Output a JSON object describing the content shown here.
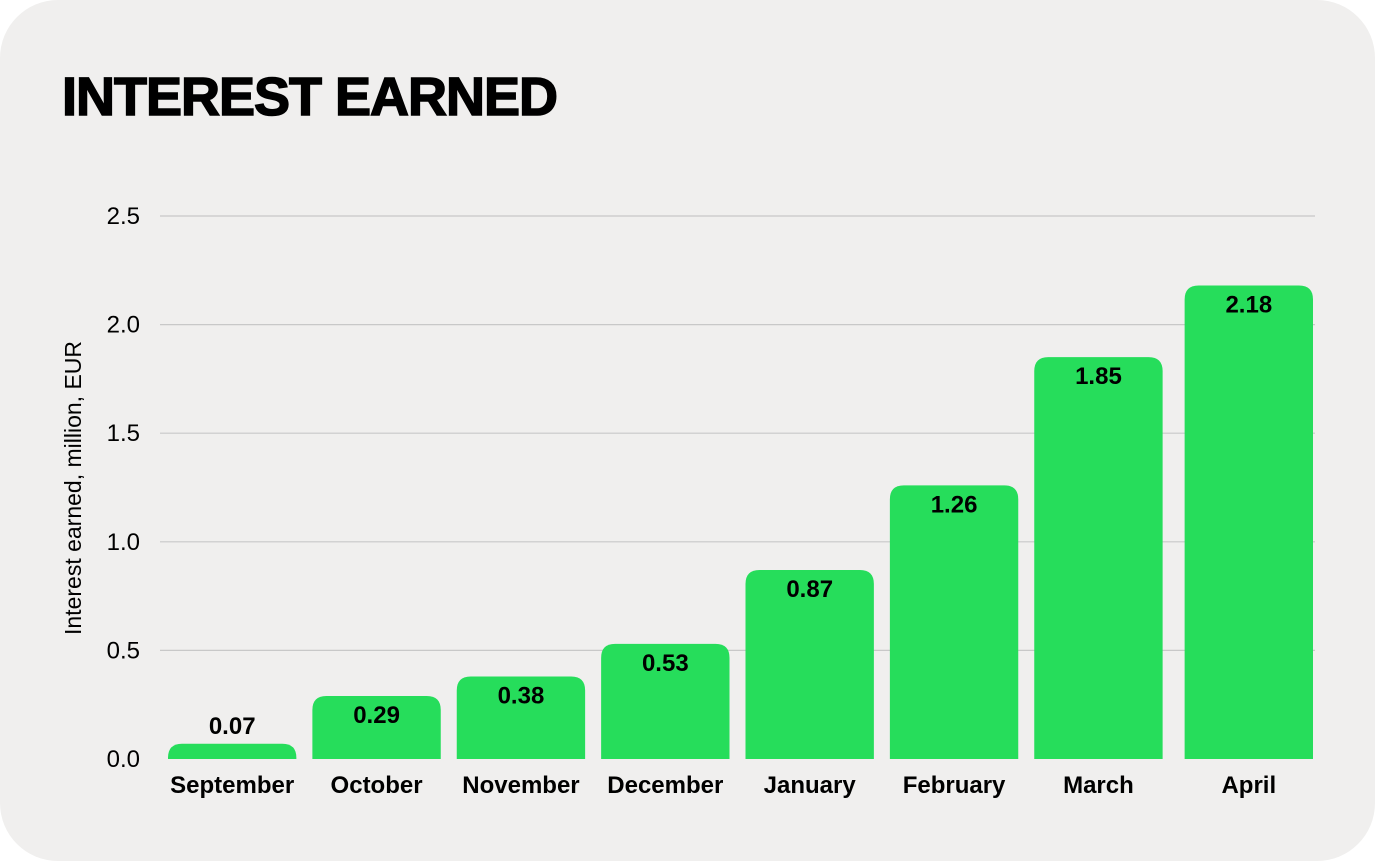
{
  "chart_data": {
    "type": "bar",
    "title": "INTEREST EARNED",
    "xlabel": "",
    "ylabel": "Interest earned, million, EUR",
    "categories": [
      "September",
      "October",
      "November",
      "December",
      "January",
      "February",
      "March",
      "April"
    ],
    "values": [
      0.07,
      0.29,
      0.38,
      0.53,
      0.87,
      1.26,
      1.85,
      2.18
    ],
    "data_labels": [
      "0.07",
      "0.29",
      "0.38",
      "0.53",
      "0.87",
      "1.26",
      "1.85",
      "2.18"
    ],
    "ylim": [
      0,
      2.5
    ],
    "yticks": [
      "0.0",
      "0.5",
      "1.0",
      "1.5",
      "2.0",
      "2.5"
    ],
    "grid": true,
    "legend": "none",
    "bar_color": "#26dd5b",
    "background_color": "#f0efee",
    "gridline_color": "#c8c8c8"
  }
}
